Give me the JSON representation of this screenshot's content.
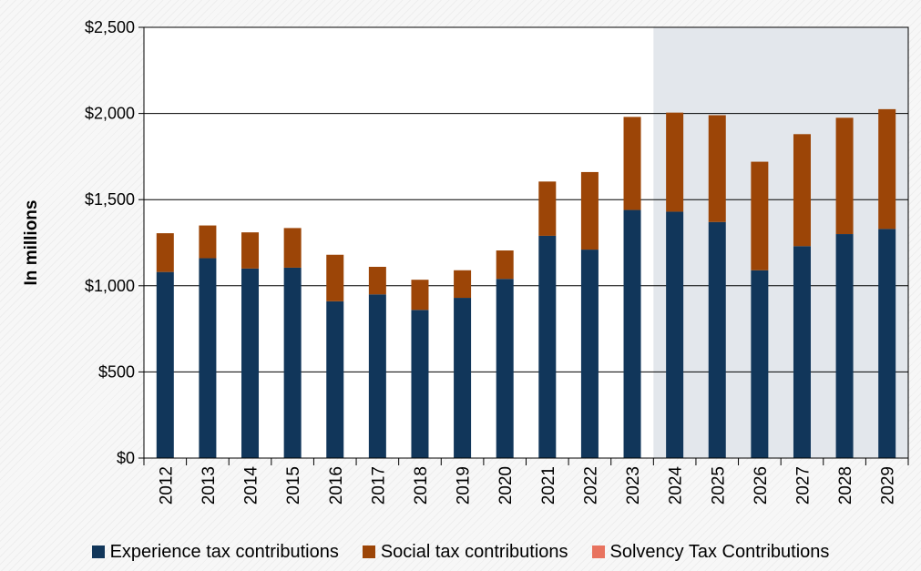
{
  "chart_data": {
    "type": "bar",
    "stacked": true,
    "title": "",
    "xlabel": "",
    "ylabel": "In millions",
    "ylim": [
      0,
      2500
    ],
    "yticks": [
      0,
      500,
      1000,
      1500,
      2000,
      2500
    ],
    "ytick_labels": [
      "$0",
      "$500",
      "$1,000",
      "$1,500",
      "$2,000",
      "$2,500"
    ],
    "grid": true,
    "shaded_region": {
      "from_category": "2024",
      "to_category": "2029",
      "color": "#e3e7ec"
    },
    "categories": [
      "2012",
      "2013",
      "2014",
      "2015",
      "2016",
      "2017",
      "2018",
      "2019",
      "2020",
      "2021",
      "2022",
      "2023",
      "2024",
      "2025",
      "2026",
      "2027",
      "2028",
      "2029"
    ],
    "series": [
      {
        "name": "Experience tax contributions",
        "color": "#11365a",
        "values": [
          1080,
          1160,
          1100,
          1105,
          910,
          950,
          860,
          930,
          1040,
          1290,
          1210,
          1440,
          1430,
          1370,
          1090,
          1230,
          1300,
          1330
        ]
      },
      {
        "name": "Social tax contributions",
        "color": "#9c4507",
        "values": [
          225,
          190,
          210,
          230,
          270,
          160,
          175,
          160,
          165,
          315,
          450,
          540,
          575,
          620,
          630,
          650,
          675,
          695
        ]
      },
      {
        "name": "Solvency Tax Contributions",
        "color": "#e8735f",
        "values": [
          0,
          0,
          0,
          0,
          0,
          0,
          0,
          0,
          0,
          0,
          0,
          0,
          0,
          0,
          0,
          0,
          0,
          0
        ]
      }
    ],
    "legend_position": "bottom"
  }
}
